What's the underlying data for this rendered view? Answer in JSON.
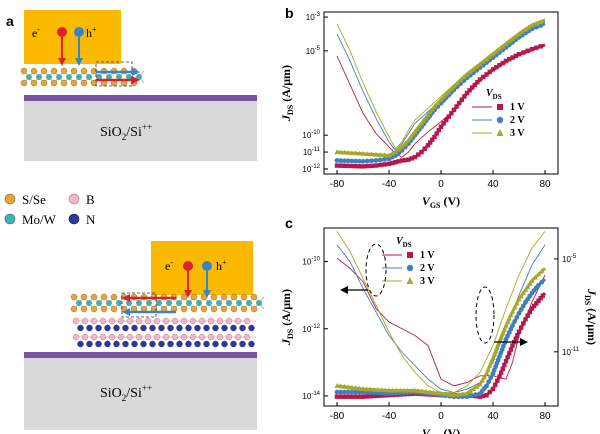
{
  "panels": {
    "a": {
      "letter": "a",
      "electron_label": "e",
      "hole_label": "h",
      "minus_sup": "-",
      "plus_sup": "+",
      "substrate_label": "SiO",
      "substrate_sub": "2",
      "substrate_rest": "/Si",
      "substrate_sup": "++",
      "legend": [
        {
          "label": "S/Se",
          "color": "#e6a43a",
          "icon": "orange-atom-icon"
        },
        {
          "label": "B",
          "color": "#f2b6c6",
          "icon": "pink-atom-icon"
        },
        {
          "label": "Mo/W",
          "color": "#3bb3b0",
          "icon": "teal-atom-icon"
        },
        {
          "label": "N",
          "color": "#2e3a9a",
          "icon": "navy-atom-icon"
        }
      ]
    },
    "b": {
      "letter": "b"
    },
    "c": {
      "letter": "c"
    }
  },
  "chart_data": [
    {
      "type": "line",
      "panel": "b",
      "xlabel": "V",
      "xlabel_sub": "GS",
      "xlabel_unit": " (V)",
      "ylabel": "J",
      "ylabel_sub": "DS",
      "ylabel_unit": " (A/μm)",
      "xlim": [
        -90,
        90
      ],
      "ylim": [
        -12.3,
        -2.7
      ],
      "yscale": "log",
      "x_ticks": [
        -80,
        -40,
        0,
        40,
        80
      ],
      "y_ticks": [
        {
          "v": -3,
          "label": "10",
          "exp": "-3"
        },
        {
          "v": -5,
          "label": "10",
          "exp": "-5"
        },
        {
          "v": -10,
          "label": "10",
          "exp": "-10"
        },
        {
          "v": -11,
          "label": "10",
          "exp": "-11"
        },
        {
          "v": -12,
          "label": "10",
          "exp": "-12"
        }
      ],
      "legend_title": "V",
      "legend_title_sub": "DS",
      "legend_position": "right",
      "series": [
        {
          "name": "1 V",
          "color": "#b8174a",
          "marker": "square",
          "sweep_x": [
            -80,
            -60,
            -50,
            -40,
            -35,
            -30,
            -25,
            -20,
            -15,
            -10,
            -5,
            0,
            10,
            20,
            30,
            40,
            50,
            60,
            70,
            80
          ],
          "sweep_y": [
            -11.8,
            -11.85,
            -11.8,
            -11.7,
            -11.6,
            -11.5,
            -11.45,
            -11.3,
            -11.0,
            -10.6,
            -10.1,
            -9.5,
            -8.5,
            -7.5,
            -6.7,
            -6.1,
            -5.6,
            -5.2,
            -4.9,
            -4.65
          ],
          "thin_x": [
            -80,
            -70,
            -60,
            -50,
            -40,
            -35,
            -30,
            -25,
            -20,
            -10,
            0,
            10,
            20,
            30,
            40,
            50,
            60,
            70,
            80
          ],
          "thin_y": [
            -5.3,
            -7.0,
            -8.7,
            -9.9,
            -10.7,
            -11.1,
            -11.3,
            -11.0,
            -10.5,
            -9.8,
            -9.2,
            -8.5,
            -7.6,
            -6.8,
            -6.2,
            -5.7,
            -5.3,
            -5.0,
            -4.7
          ]
        },
        {
          "name": "2 V",
          "color": "#3f7fc0",
          "marker": "circle",
          "sweep_x": [
            -80,
            -60,
            -50,
            -40,
            -35,
            -30,
            -25,
            -20,
            -15,
            -10,
            -5,
            0,
            10,
            20,
            30,
            40,
            50,
            60,
            70,
            80
          ],
          "sweep_y": [
            -11.5,
            -11.55,
            -11.5,
            -11.4,
            -11.2,
            -10.9,
            -10.5,
            -10.0,
            -9.5,
            -9.0,
            -8.5,
            -8.1,
            -7.3,
            -6.6,
            -6.0,
            -5.4,
            -4.8,
            -4.2,
            -3.7,
            -3.4
          ],
          "thin_x": [
            -80,
            -70,
            -60,
            -50,
            -40,
            -35,
            -30,
            -25,
            -20,
            -10,
            0,
            10,
            20,
            30,
            40,
            50,
            60,
            70,
            80
          ],
          "thin_y": [
            -4.0,
            -5.6,
            -7.4,
            -9.0,
            -10.4,
            -10.9,
            -10.5,
            -9.9,
            -9.3,
            -8.6,
            -7.9,
            -7.2,
            -6.5,
            -5.9,
            -5.3,
            -4.7,
            -4.1,
            -3.6,
            -3.3
          ]
        },
        {
          "name": "3 V",
          "color": "#a7a82a",
          "marker": "triangle",
          "sweep_x": [
            -80,
            -60,
            -50,
            -40,
            -35,
            -30,
            -25,
            -20,
            -15,
            -10,
            -5,
            0,
            10,
            20,
            30,
            40,
            50,
            60,
            70,
            80
          ],
          "sweep_y": [
            -11.0,
            -11.1,
            -11.15,
            -11.2,
            -11.0,
            -10.7,
            -10.3,
            -9.8,
            -9.3,
            -8.8,
            -8.3,
            -7.9,
            -7.1,
            -6.4,
            -5.8,
            -5.2,
            -4.6,
            -4.0,
            -3.5,
            -3.2
          ],
          "thin_x": [
            -80,
            -70,
            -60,
            -50,
            -40,
            -35,
            -30,
            -25,
            -20,
            -10,
            0,
            10,
            20,
            30,
            40,
            50,
            60,
            70,
            80
          ],
          "thin_y": [
            -3.4,
            -5.0,
            -6.9,
            -8.6,
            -10.1,
            -10.8,
            -10.4,
            -9.7,
            -9.1,
            -8.4,
            -7.7,
            -7.0,
            -6.3,
            -5.7,
            -5.1,
            -4.5,
            -3.9,
            -3.4,
            -3.1
          ]
        }
      ]
    },
    {
      "type": "line",
      "panel": "c",
      "xlabel": "V",
      "xlabel_sub": "GS",
      "xlabel_unit": " (V)",
      "ylabel": "J",
      "ylabel_sub": "DS",
      "ylabel_unit": " (A/μm)",
      "xlim": [
        -90,
        90
      ],
      "ylim": [
        -14.3,
        -9.0
      ],
      "yscale": "log",
      "x_ticks": [
        -80,
        -40,
        0,
        40,
        80
      ],
      "y_ticks": [
        {
          "v": -10,
          "label": "10",
          "exp": "-10"
        },
        {
          "v": -12,
          "label": "10",
          "exp": "-12"
        },
        {
          "v": -14,
          "label": "10",
          "exp": "-14"
        }
      ],
      "y2label": "J",
      "y2label_sub": "DS",
      "y2label_unit": " (A/μm)",
      "y2lim": [
        -14.5,
        -3.0
      ],
      "y2_ticks": [
        {
          "v": -5,
          "label": "10",
          "exp": "-5"
        },
        {
          "v": -11,
          "label": "10",
          "exp": "-11"
        }
      ],
      "legend_title": "V",
      "legend_title_sub": "DS",
      "legend_position": "top-center",
      "series": [
        {
          "name": "1 V",
          "color": "#b8174a",
          "marker": "square",
          "thin_x": [
            -80,
            -70,
            -60,
            -55,
            -50,
            -40,
            -30,
            -20,
            -10,
            0,
            10,
            20,
            30,
            40,
            50,
            55,
            60,
            70,
            80
          ],
          "thin_y": [
            -9.9,
            -10.2,
            -10.6,
            -11.0,
            -11.4,
            -11.8,
            -12.0,
            -12.2,
            -12.5,
            -13.5,
            -13.7,
            -13.6,
            -13.4,
            -13.4,
            -13.5,
            -13.0,
            -12.2,
            -11.2,
            -10.4
          ],
          "sweep_x": [
            -80,
            -60,
            -40,
            -20,
            0,
            10,
            20,
            30,
            35,
            40,
            45,
            50,
            55,
            60,
            65,
            70,
            75,
            80
          ],
          "sweep_y": [
            -13.9,
            -13.9,
            -13.8,
            -13.7,
            -13.8,
            -13.8,
            -13.8,
            -13.9,
            -13.8,
            -13.4,
            -12.6,
            -11.6,
            -10.6,
            -9.7,
            -8.9,
            -8.2,
            -7.7,
            -7.2
          ]
        },
        {
          "name": "2 V",
          "color": "#3f7fc0",
          "marker": "circle",
          "thin_x": [
            -80,
            -70,
            -60,
            -50,
            -40,
            -30,
            -20,
            -10,
            0,
            10,
            20,
            30,
            40,
            50,
            60,
            70,
            80
          ],
          "thin_y": [
            -9.5,
            -10.0,
            -10.8,
            -11.5,
            -12.2,
            -12.7,
            -13.1,
            -13.5,
            -13.8,
            -13.9,
            -13.8,
            -13.6,
            -13.0,
            -12.0,
            -11.0,
            -10.1,
            -9.5
          ],
          "sweep_x": [
            -80,
            -60,
            -40,
            -20,
            0,
            10,
            20,
            30,
            35,
            40,
            45,
            50,
            55,
            60,
            65,
            70,
            75,
            80
          ],
          "sweep_y": [
            -13.6,
            -13.6,
            -13.7,
            -13.6,
            -13.8,
            -13.9,
            -13.9,
            -13.7,
            -13.2,
            -12.4,
            -11.3,
            -10.2,
            -9.3,
            -8.5,
            -7.8,
            -7.2,
            -6.7,
            -6.3
          ]
        },
        {
          "name": "3 V",
          "color": "#a7a82a",
          "marker": "triangle",
          "thin_x": [
            -80,
            -70,
            -60,
            -50,
            -40,
            -30,
            -20,
            -10,
            0,
            10,
            20,
            30,
            40,
            50,
            60,
            70,
            80
          ],
          "thin_y": [
            -9.1,
            -9.7,
            -10.5,
            -11.3,
            -12.1,
            -12.8,
            -13.3,
            -13.7,
            -13.9,
            -13.9,
            -13.7,
            -13.3,
            -12.5,
            -11.4,
            -10.4,
            -9.6,
            -9.1
          ],
          "sweep_x": [
            -80,
            -60,
            -40,
            -20,
            0,
            10,
            20,
            30,
            35,
            40,
            45,
            50,
            55,
            60,
            65,
            70,
            75,
            80
          ],
          "sweep_y": [
            -13.2,
            -13.4,
            -13.5,
            -13.5,
            -13.7,
            -13.8,
            -13.7,
            -13.1,
            -12.4,
            -11.4,
            -10.3,
            -9.3,
            -8.4,
            -7.6,
            -7.0,
            -6.4,
            -6.0,
            -5.6
          ]
        }
      ]
    }
  ]
}
